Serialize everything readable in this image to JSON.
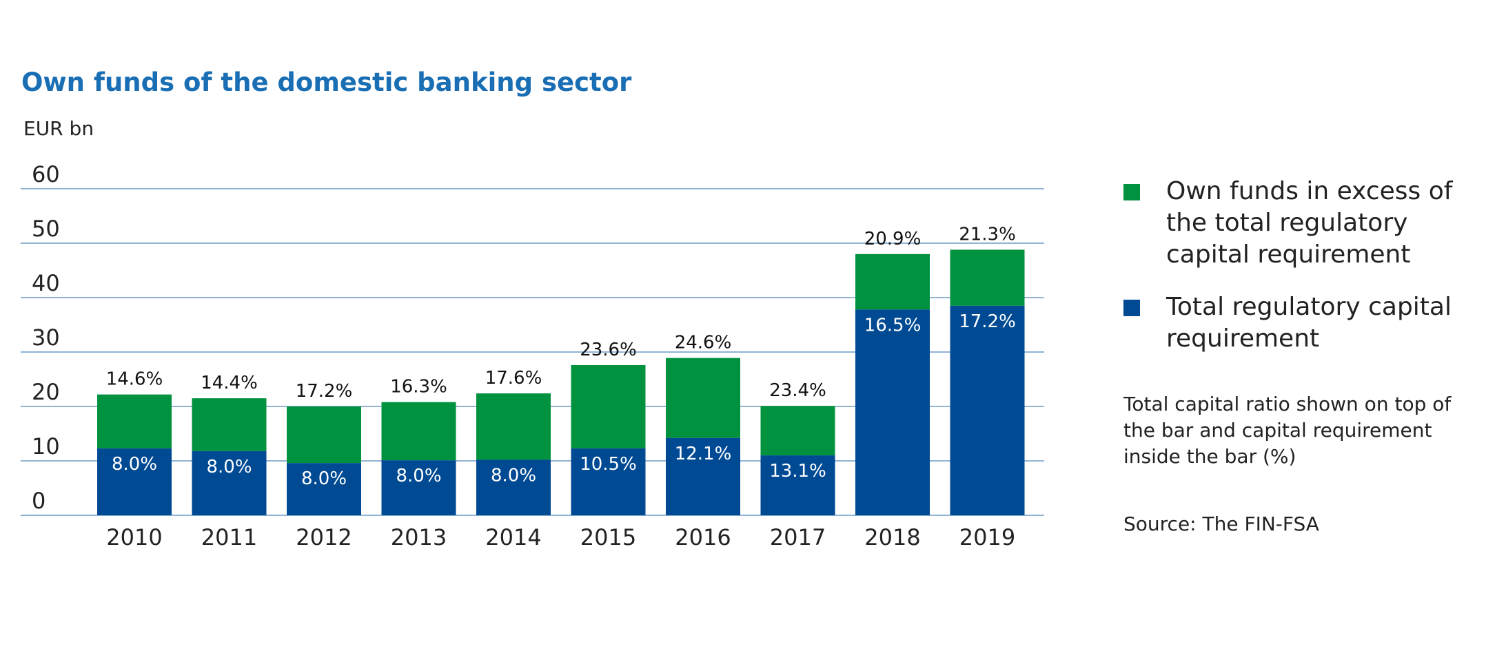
{
  "colors": {
    "required": "#004a94",
    "excess": "#00923f",
    "grid": "#6b9bc8",
    "title": "#1a6fb4"
  },
  "legend": {
    "excess": "Own funds in excess of the total regulatory capital requirement",
    "required": "Total regulatory capital requirement"
  },
  "note": "Total capital ratio shown on top of the bar and capital requirement inside the bar (%)",
  "source": "Source: The FIN-FSA",
  "chart_data": {
    "type": "bar",
    "stacked": true,
    "title": "Own funds of the domestic banking sector",
    "ylabel": "EUR bn",
    "ylim": [
      0,
      60
    ],
    "yticks": [
      0,
      10,
      20,
      30,
      40,
      50,
      60
    ],
    "categories": [
      "2010",
      "2011",
      "2012",
      "2013",
      "2014",
      "2015",
      "2016",
      "2017",
      "2018",
      "2019"
    ],
    "series": [
      {
        "name": "Total regulatory capital requirement",
        "values": [
          12.3,
          11.8,
          9.6,
          10.1,
          10.2,
          12.3,
          14.2,
          11,
          37.8,
          38.5
        ]
      },
      {
        "name": "Own funds in excess of the total regulatory capital requirement",
        "values": [
          9.9,
          9.7,
          10.4,
          10.7,
          12.2,
          15.3,
          14.7,
          9.1,
          10.2,
          10.3
        ]
      }
    ],
    "total_capital_ratio_labels": [
      "14.6%",
      "14.4%",
      "17.2%",
      "16.3%",
      "17.6%",
      "23.6%",
      "24.6%",
      "23.4%",
      "20.9%",
      "21.3%"
    ],
    "capital_requirement_labels": [
      "8.0%",
      "8.0%",
      "8.0%",
      "8.0%",
      "8.0%",
      "10.5%",
      "12.1%",
      "13.1%",
      "16.5%",
      "17.2%"
    ],
    "grid": true,
    "legend_position": "right"
  }
}
